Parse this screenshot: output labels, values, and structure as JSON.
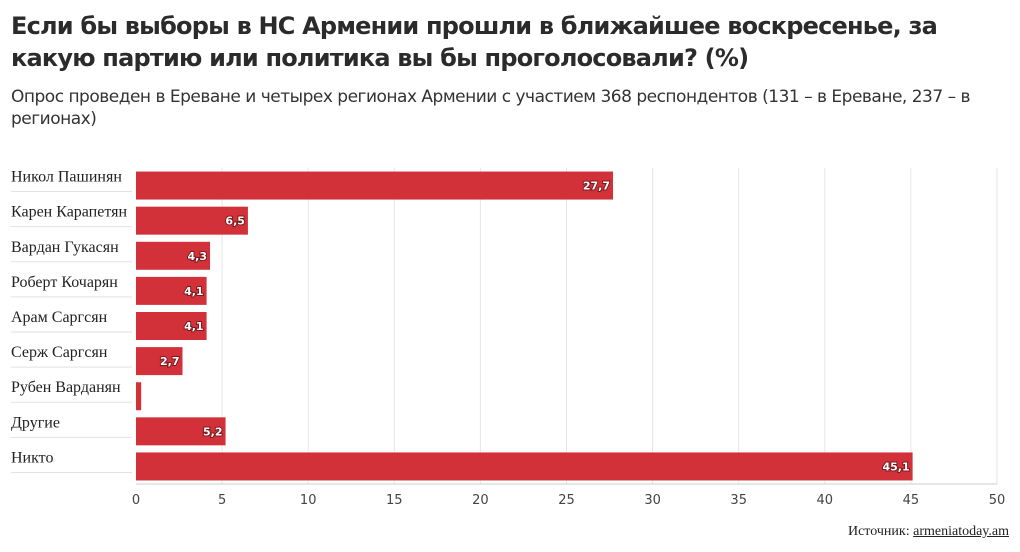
{
  "chart_data": {
    "type": "bar",
    "orientation": "horizontal",
    "title": "Если бы выборы в НС Армении прошли в ближайшее воскресенье, за какую партию или политика вы бы проголосовали? (%)",
    "subtitle": "Опрос проведен в Ереване и четырех регионах Армении с участием 368 респондентов (131 – в Ереване, 237 – в регионах)",
    "categories": [
      "Никол Пашинян",
      "Карен Карапетян",
      "Вардан Гукасян",
      "Роберт Кочарян",
      "Арам Саргсян",
      "Серж Саргсян",
      "Рубен Варданян",
      "Другие",
      "Никто"
    ],
    "values": [
      27.7,
      6.5,
      4.3,
      4.1,
      4.1,
      2.7,
      0.3,
      5.2,
      45.1
    ],
    "value_labels": [
      "27,7",
      "6,5",
      "4,3",
      "4,1",
      "4,1",
      "2,7",
      "",
      "5,2",
      "45,1"
    ],
    "xlim": [
      0,
      50
    ],
    "xticks": [
      0,
      5,
      10,
      15,
      20,
      25,
      30,
      35,
      40,
      45,
      50
    ],
    "bar_color": "#d3313a",
    "grid": true,
    "source_prefix": "Источник:",
    "source_link": "armeniatoday.am"
  }
}
